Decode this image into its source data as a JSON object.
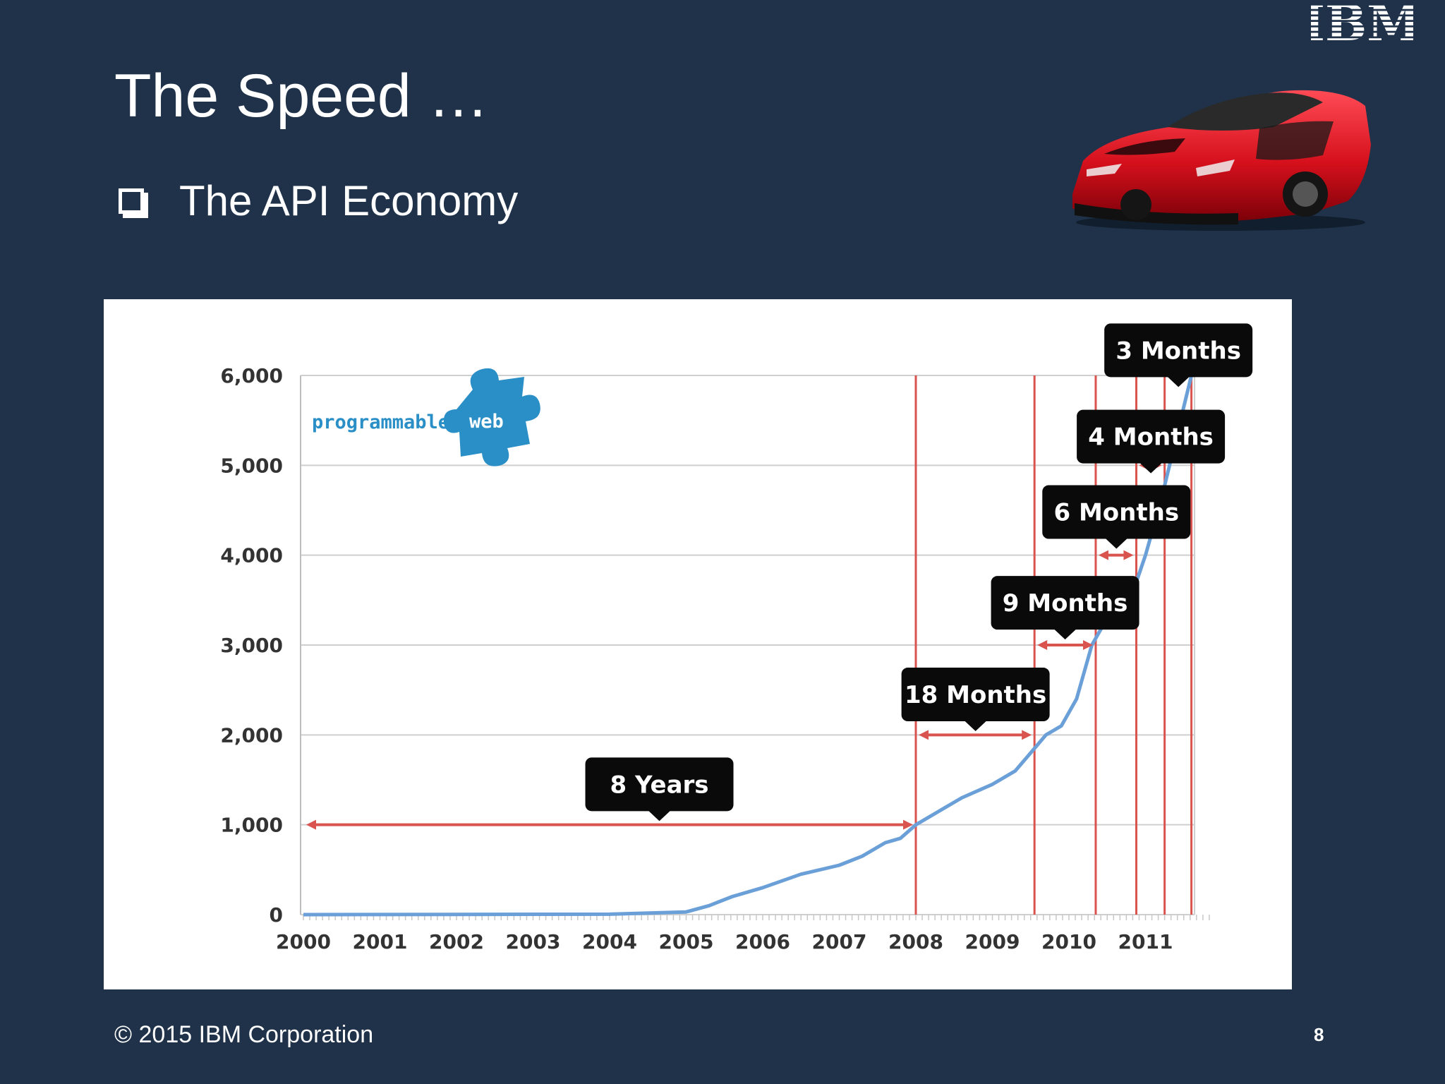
{
  "slide": {
    "logo_text": "IBM",
    "title": "The Speed …",
    "bullet": "The API Economy",
    "footer": "© 2015 IBM Corporation",
    "page_number": "8",
    "background_color": "#1f3249"
  },
  "chart_data": {
    "type": "line",
    "title": "",
    "xlabel": "",
    "ylabel": "",
    "x_ticks": [
      "2000",
      "2001",
      "2002",
      "2003",
      "2004",
      "2005",
      "2006",
      "2007",
      "2008",
      "2009",
      "2010",
      "2011"
    ],
    "y_ticks": [
      "0",
      "1,000",
      "2,000",
      "3,000",
      "4,000",
      "5,000",
      "6,000"
    ],
    "xlim": [
      2000,
      2011.8
    ],
    "ylim": [
      0,
      6000
    ],
    "grid": true,
    "legend": "none",
    "watermark": {
      "text_part1": "programmable",
      "text_part2": "web",
      "position": "top-left"
    },
    "series": [
      {
        "color": "#6a9fd8",
        "x": [
          2000,
          2004,
          2005,
          2005.3,
          2005.6,
          2006,
          2006.5,
          2007,
          2007.3,
          2007.6,
          2007.8,
          2008,
          2008.3,
          2008.6,
          2009,
          2009.3,
          2009.5,
          2009.7,
          2009.9,
          2010.1,
          2010.3,
          2010.5,
          2010.8,
          2011.0,
          2011.2,
          2011.4,
          2011.6
        ],
        "y": [
          0,
          5,
          30,
          100,
          200,
          300,
          450,
          550,
          650,
          800,
          850,
          1000,
          1150,
          1300,
          1450,
          1600,
          1800,
          2000,
          2100,
          2400,
          3000,
          3300,
          3500,
          4000,
          4600,
          5300,
          6000
        ]
      }
    ],
    "vertical_markers": [
      2008,
      2009.55,
      2010.35,
      2010.88,
      2011.25,
      2011.6
    ],
    "intervals": [
      {
        "label": "8 Years",
        "from": 2000,
        "to": 2008,
        "y": 1000,
        "callout_x": 2004.65,
        "callout_y": 1450
      },
      {
        "label": "18 Months",
        "from": 2008,
        "to": 2009.55,
        "y": 2000,
        "callout_x": 2008.78,
        "callout_y": 2450
      },
      {
        "label": "9 Months",
        "from": 2009.55,
        "to": 2010.35,
        "y": 3000,
        "callout_x": 2009.95,
        "callout_y": 3470
      },
      {
        "label": "6 Months",
        "from": 2010.35,
        "to": 2010.88,
        "y": 4000,
        "callout_x": 2010.62,
        "callout_y": 4480
      },
      {
        "label": "4 Months",
        "from": 2010.88,
        "to": 2011.25,
        "y": 5000,
        "callout_x": 2011.07,
        "callout_y": 5320
      },
      {
        "label": "3 Months",
        "from": 2011.25,
        "to": 2011.6,
        "y": 6000,
        "callout_x": 2011.43,
        "callout_y": 6280
      }
    ],
    "marker_color": "#d9534f",
    "callout_color": "#0a0a0a"
  }
}
